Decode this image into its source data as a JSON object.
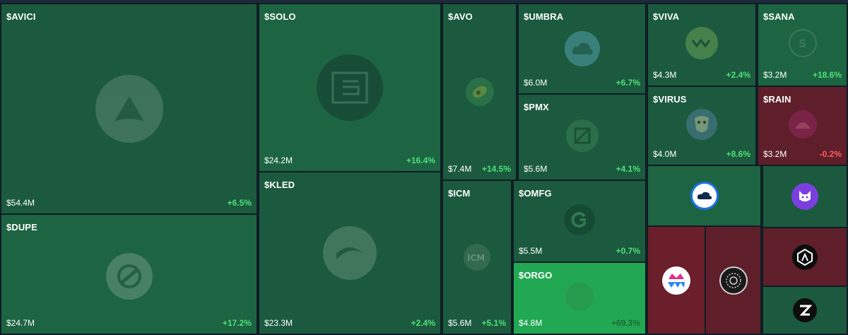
{
  "tokens": {
    "avici": {
      "ticker": "$AVICI",
      "cap": "$54.4M",
      "change": "+6.5%"
    },
    "dupe": {
      "ticker": "$DUPE",
      "cap": "$24.7M",
      "change": "+17.2%"
    },
    "solo": {
      "ticker": "$SOLO",
      "cap": "$24.2M",
      "change": "+16.4%"
    },
    "kled": {
      "ticker": "$KLED",
      "cap": "$23.3M",
      "change": "+2.4%"
    },
    "avo": {
      "ticker": "$AVO",
      "cap": "$7.4M",
      "change": "+14.5%"
    },
    "icm": {
      "ticker": "$ICM",
      "cap": "$5.6M",
      "change": "+5.1%"
    },
    "umbra": {
      "ticker": "$UMBRA",
      "cap": "$6.0M",
      "change": "+6.7%"
    },
    "pmx": {
      "ticker": "$PMX",
      "cap": "$5.6M",
      "change": "+4.1%"
    },
    "omfg": {
      "ticker": "$OMFG",
      "cap": "$5.5M",
      "change": "+0.7%"
    },
    "orgo": {
      "ticker": "$ORGO",
      "cap": "$4.8M",
      "change": "+69.3%"
    },
    "viva": {
      "ticker": "$VIVA",
      "cap": "$4.3M",
      "change": "+2.4%"
    },
    "virus": {
      "ticker": "$VIRUS",
      "cap": "$4.0M",
      "change": "+8.6%"
    },
    "sana": {
      "ticker": "$SANA",
      "cap": "$3.2M",
      "change": "+18.6%"
    },
    "rain": {
      "ticker": "$RAIN",
      "cap": "$3.2M",
      "change": "-0.2%"
    }
  },
  "icons": {
    "avici": "avici-logo-icon",
    "dupe": "dupe-logo-icon",
    "solo": "solo-logo-icon",
    "kled": "kled-logo-icon",
    "avo": "avo-logo-icon",
    "icm": "icm-logo-icon",
    "umbra": "umbra-logo-icon",
    "pmx": "pmx-logo-icon",
    "omfg": "omfg-logo-icon",
    "orgo": "orgo-logo-icon",
    "viva": "viva-logo-icon",
    "virus": "virus-logo-icon",
    "sana": "sana-logo-icon",
    "rain": "rain-logo-icon",
    "small_1": "cloud-logo-icon",
    "small_2": "cat-logo-icon",
    "small_3": "crown-logo-icon",
    "small_4": "medallion-logo-icon",
    "small_5": "hexagon-logo-icon",
    "small_6": "z-logo-icon"
  },
  "colors": {
    "dark_green": "#1b5a3e",
    "mid_green": "#1d6442",
    "bright_green": "#22a852",
    "dark_red": "#5e1f2a",
    "red": "#6a1f2a",
    "gain": "#4ee07a",
    "loss": "#ff5c5c"
  }
}
